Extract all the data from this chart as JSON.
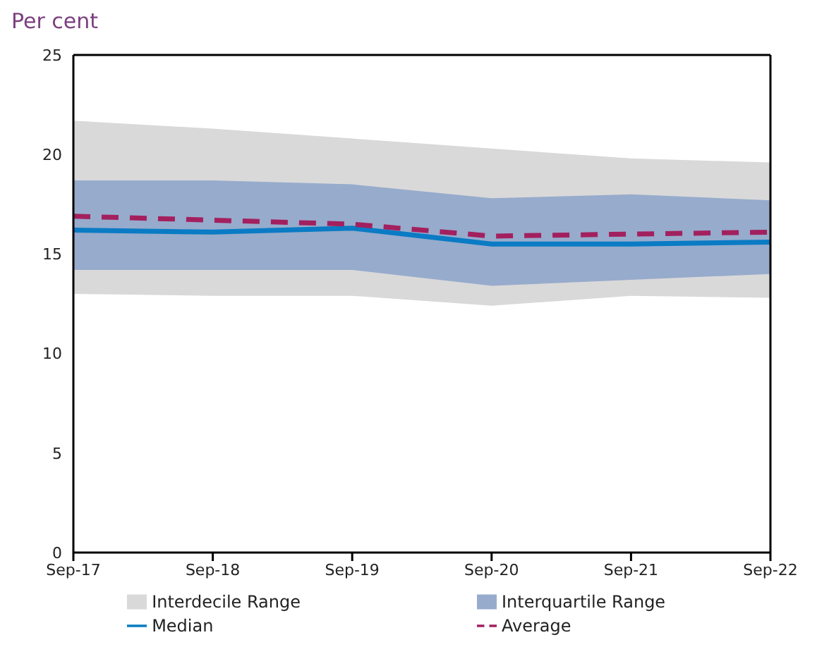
{
  "chart_data": {
    "type": "line",
    "ylabel": "Per cent",
    "categories": [
      "Sep-17",
      "Sep-18",
      "Sep-19",
      "Sep-20",
      "Sep-21",
      "Sep-22"
    ],
    "series": [
      {
        "name": "Interdecile Range",
        "type": "area",
        "color": "#d9d9d9",
        "values": [
          null,
          null,
          null,
          null,
          null,
          null
        ],
        "lower": [
          13.0,
          12.9,
          12.9,
          12.4,
          12.9,
          12.8
        ],
        "upper": [
          21.7,
          21.3,
          20.8,
          20.3,
          19.8,
          19.6
        ]
      },
      {
        "name": "Interquartile Range",
        "type": "area",
        "color": "#97abcc",
        "values": [
          null,
          null,
          null,
          null,
          null,
          null
        ],
        "lower": [
          14.2,
          14.2,
          14.2,
          13.4,
          13.7,
          14.0
        ],
        "upper": [
          18.7,
          18.7,
          18.5,
          17.8,
          18.0,
          17.7
        ]
      },
      {
        "name": "Median",
        "type": "line",
        "color": "#0a7bc4",
        "line_style": "solid",
        "values": [
          16.2,
          16.1,
          16.3,
          15.5,
          15.5,
          15.6
        ]
      },
      {
        "name": "Average",
        "type": "line",
        "color": "#a3205f",
        "line_style": "dashed",
        "values": [
          16.9,
          16.7,
          16.5,
          15.9,
          16.0,
          16.1
        ]
      }
    ],
    "ylim": [
      0,
      25
    ],
    "yticks": [
      0,
      5,
      10,
      15,
      20,
      25
    ],
    "grid": false,
    "legend": "bottom",
    "marker": "none"
  }
}
